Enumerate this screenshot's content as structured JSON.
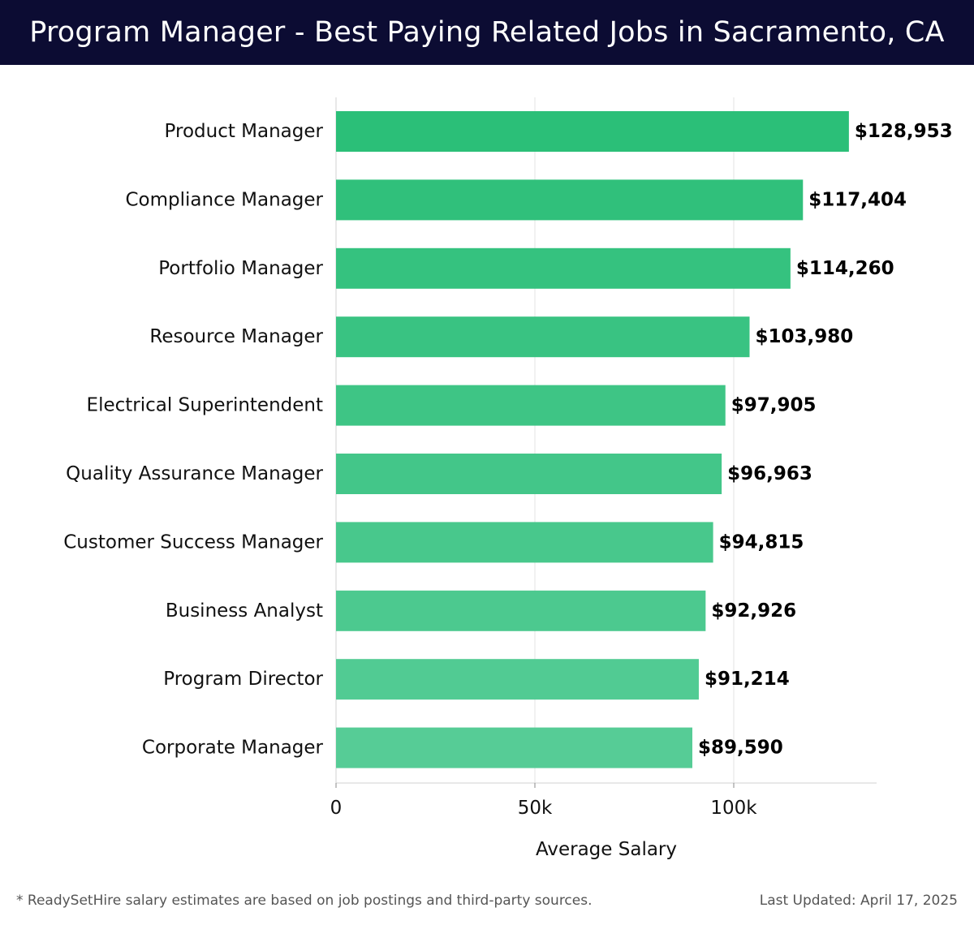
{
  "header": {
    "title": "Program Manager - Best Paying Related Jobs in Sacramento, CA"
  },
  "chart_data": {
    "type": "bar",
    "orientation": "horizontal",
    "categories": [
      "Product Manager",
      "Compliance Manager",
      "Portfolio Manager",
      "Resource Manager",
      "Electrical Superintendent",
      "Quality Assurance Manager",
      "Customer Success Manager",
      "Business Analyst",
      "Program Director",
      "Corporate Manager"
    ],
    "values": [
      128953,
      117404,
      114260,
      103980,
      97905,
      96963,
      94815,
      92926,
      91214,
      89590
    ],
    "value_labels": [
      "$128,953",
      "$117,404",
      "$114,260",
      "$103,980",
      "$97,905",
      "$96,963",
      "$94,815",
      "$92,926",
      "$91,214",
      "$89,590"
    ],
    "xlabel": "Average Salary",
    "ylabel": "",
    "xlim": [
      0,
      135000
    ],
    "xticks": [
      0,
      50000,
      100000
    ],
    "xtick_labels": [
      "0",
      "50k",
      "100k"
    ],
    "grid": "vertical",
    "colors": {
      "bar_high": "#2bbf78",
      "bar_low": "#56cc96"
    }
  },
  "footer": {
    "note": "* ReadySetHire salary estimates are based on job postings and third-party sources.",
    "updated": "Last Updated: April 17, 2025"
  }
}
